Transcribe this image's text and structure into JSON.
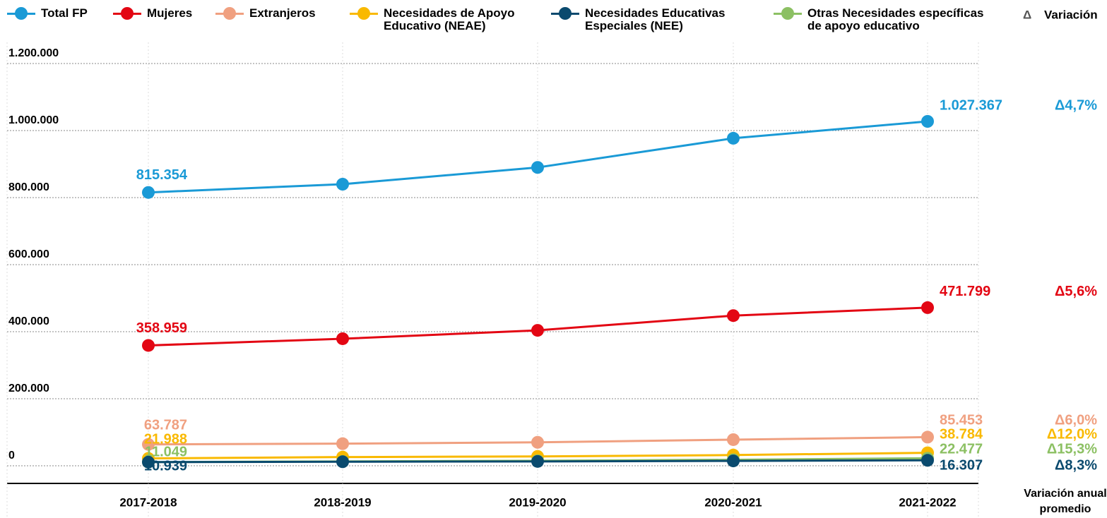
{
  "chart_data": {
    "type": "line",
    "categories": [
      "2017-2018",
      "2018-2019",
      "2019-2020",
      "2020-2021",
      "2021-2022"
    ],
    "ylim": [
      0,
      1200000
    ],
    "yticks": [
      {
        "value": 0,
        "label": "0"
      },
      {
        "value": 200000,
        "label": "200.000"
      },
      {
        "value": 400000,
        "label": "400.000"
      },
      {
        "value": 600000,
        "label": "600.000"
      },
      {
        "value": 800000,
        "label": "800.000"
      },
      {
        "value": 1000000,
        "label": "1.000.000"
      },
      {
        "value": 1200000,
        "label": "1.200.000"
      }
    ],
    "grid": true,
    "variation_symbol": "Δ",
    "variation_header": "Variación",
    "variation_footer": "Variación anual promedio",
    "series": [
      {
        "name": "Total FP",
        "color": "#1a9ad6",
        "values": [
          815354,
          840000,
          890000,
          977000,
          1027367
        ],
        "value_labels": [
          "815.354",
          null,
          null,
          null,
          "1.027.367"
        ],
        "variation": "Δ4,7%"
      },
      {
        "name": "Mujeres",
        "color": "#e30613",
        "values": [
          358959,
          379000,
          404000,
          448000,
          471799
        ],
        "value_labels": [
          "358.959",
          null,
          null,
          null,
          "471.799"
        ],
        "variation": "Δ5,6%"
      },
      {
        "name": "Extranjeros",
        "color": "#f0a080",
        "values": [
          63787,
          66000,
          70000,
          78000,
          85453
        ],
        "value_labels": [
          "63.787",
          null,
          null,
          null,
          "85.453"
        ],
        "variation": "Δ6,0%"
      },
      {
        "name": "Necesidades de Apoyo Educativo (NEAE)",
        "color": "#f9b900",
        "values": [
          21988,
          26000,
          28000,
          32000,
          38784
        ],
        "value_labels": [
          "21.988",
          null,
          null,
          null,
          "38.784"
        ],
        "variation": "Δ12,0%"
      },
      {
        "name": "Necesidades Educativas Especiales (NEE)",
        "color": "#0a4a6e",
        "values": [
          10939,
          12000,
          13000,
          14500,
          16307
        ],
        "value_labels": [
          "10.939",
          null,
          null,
          null,
          "16.307"
        ],
        "variation": "Δ8,3%"
      },
      {
        "name": "Otras Necesidades específicas de apoyo educativo",
        "color": "#8cc063",
        "values": [
          11049,
          13000,
          15000,
          18000,
          22477
        ],
        "value_labels": [
          "11.049",
          null,
          null,
          null,
          "22.477"
        ],
        "variation": "Δ15,3%"
      }
    ]
  }
}
